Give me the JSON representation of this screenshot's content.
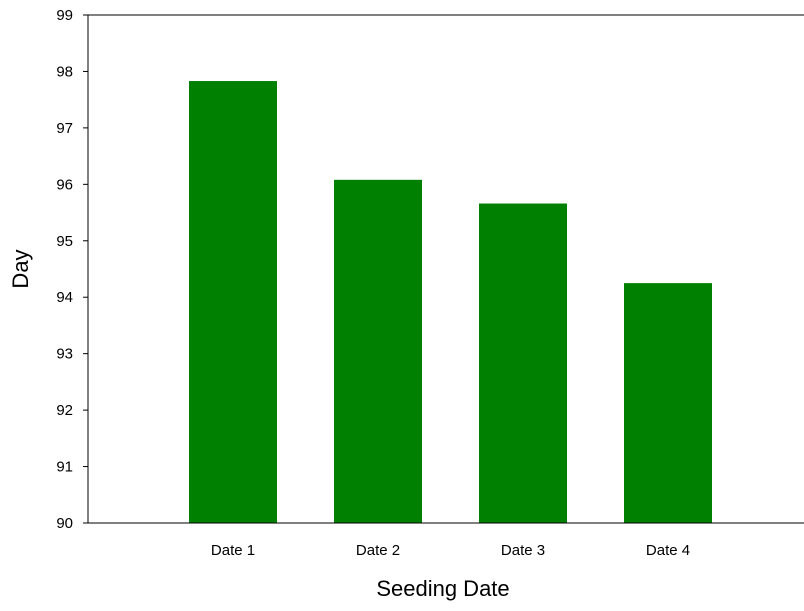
{
  "chart_data": {
    "type": "bar",
    "categories": [
      "Date 1",
      "Date 2",
      "Date 3",
      "Date 4"
    ],
    "values": [
      97.83,
      96.08,
      95.66,
      94.25
    ],
    "xlabel": "Seeding Date",
    "ylabel": "Day",
    "ylim": [
      90,
      99
    ],
    "yticks": [
      90,
      91,
      92,
      93,
      94,
      95,
      96,
      97,
      98,
      99
    ],
    "grid": false,
    "legend": "none",
    "colors": {
      "bar": "#008000",
      "axis": "#000000",
      "background": "#ffffff"
    }
  }
}
